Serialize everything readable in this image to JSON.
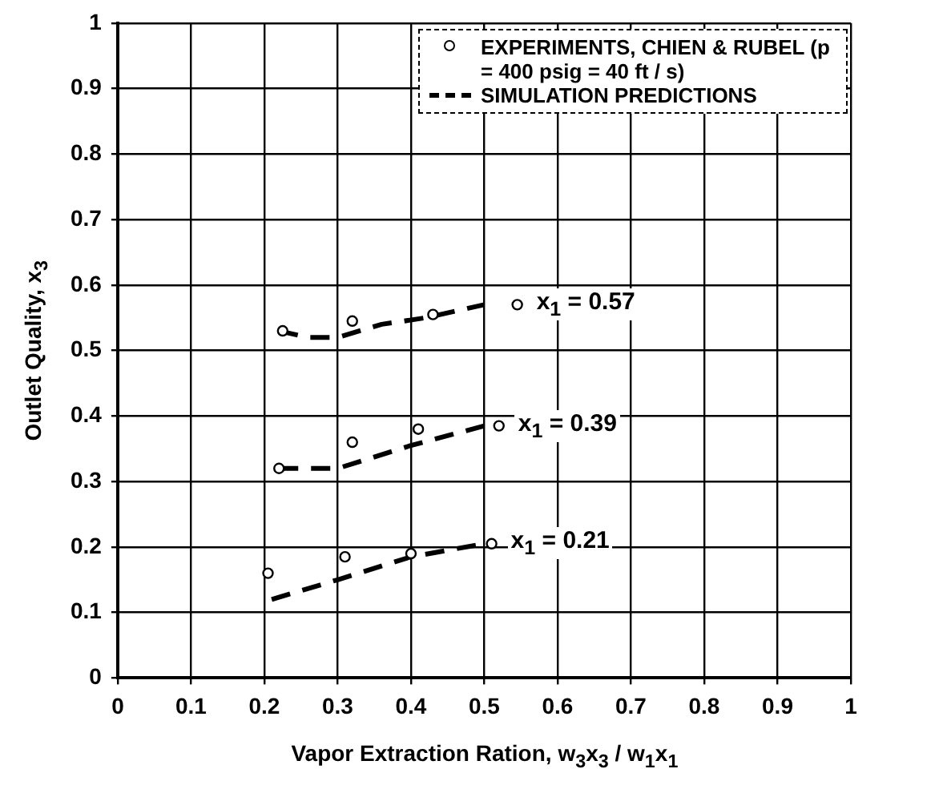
{
  "chart_data": {
    "type": "scatter",
    "xlabel": "Vapor Extraction Ration, w$_{3}$x$_{3}$ / w$_{1}$x$_{1}$",
    "ylabel": "Outlet Quality, x$_{3}$",
    "xlim": [
      0,
      1
    ],
    "xticks": [
      0,
      0.1,
      0.2,
      0.3,
      0.4,
      0.5,
      0.6,
      0.7,
      0.8,
      0.9,
      1
    ],
    "ylim": [
      0,
      1
    ],
    "yticks": [
      0,
      0.1,
      0.2,
      0.3,
      0.4,
      0.5,
      0.6,
      0.7,
      0.8,
      0.9,
      1
    ],
    "grid": true,
    "legend": "top right",
    "series": [
      {
        "name": "EXPERIMENTS, CHIEN & RUBEL (p = 400 psig = 40 ft / s)",
        "color": "#000000",
        "marker": "circle",
        "x": [
          0.225,
          0.32,
          0.43,
          0.545
        ],
        "values": [
          0.53,
          0.545,
          0.555,
          0.57
        ]
      },
      {
        "color": "#000000",
        "marker": "circle",
        "x": [
          0.22,
          0.32,
          0.41,
          0.52
        ],
        "values": [
          0.32,
          0.36,
          0.38,
          0.385
        ]
      },
      {
        "color": "#000000",
        "marker": "circle",
        "x": [
          0.205,
          0.31,
          0.4,
          0.51
        ],
        "values": [
          0.16,
          0.185,
          0.19,
          0.205
        ]
      },
      {
        "type": "line",
        "name": "SIMULATION PREDICTIONS",
        "color": "#000000",
        "line_style": "dashed",
        "x": [
          0.22,
          0.26,
          0.3,
          0.36,
          0.42,
          0.5
        ],
        "values": [
          0.53,
          0.52,
          0.52,
          0.54,
          0.55,
          0.57
        ]
      },
      {
        "type": "line",
        "color": "#000000",
        "line_style": "dashed",
        "x": [
          0.22,
          0.3,
          0.4,
          0.5
        ],
        "values": [
          0.32,
          0.32,
          0.355,
          0.385
        ]
      },
      {
        "type": "line",
        "color": "#000000",
        "line_style": "dashed",
        "x": [
          0.21,
          0.3,
          0.4,
          0.5
        ],
        "values": [
          0.12,
          0.15,
          0.185,
          0.205
        ]
      }
    ],
    "annotations": [
      "x$_{1}$ = 0.57",
      "x$_{1}$ = 0.39",
      "x$_{1}$ = 0.21"
    ]
  }
}
